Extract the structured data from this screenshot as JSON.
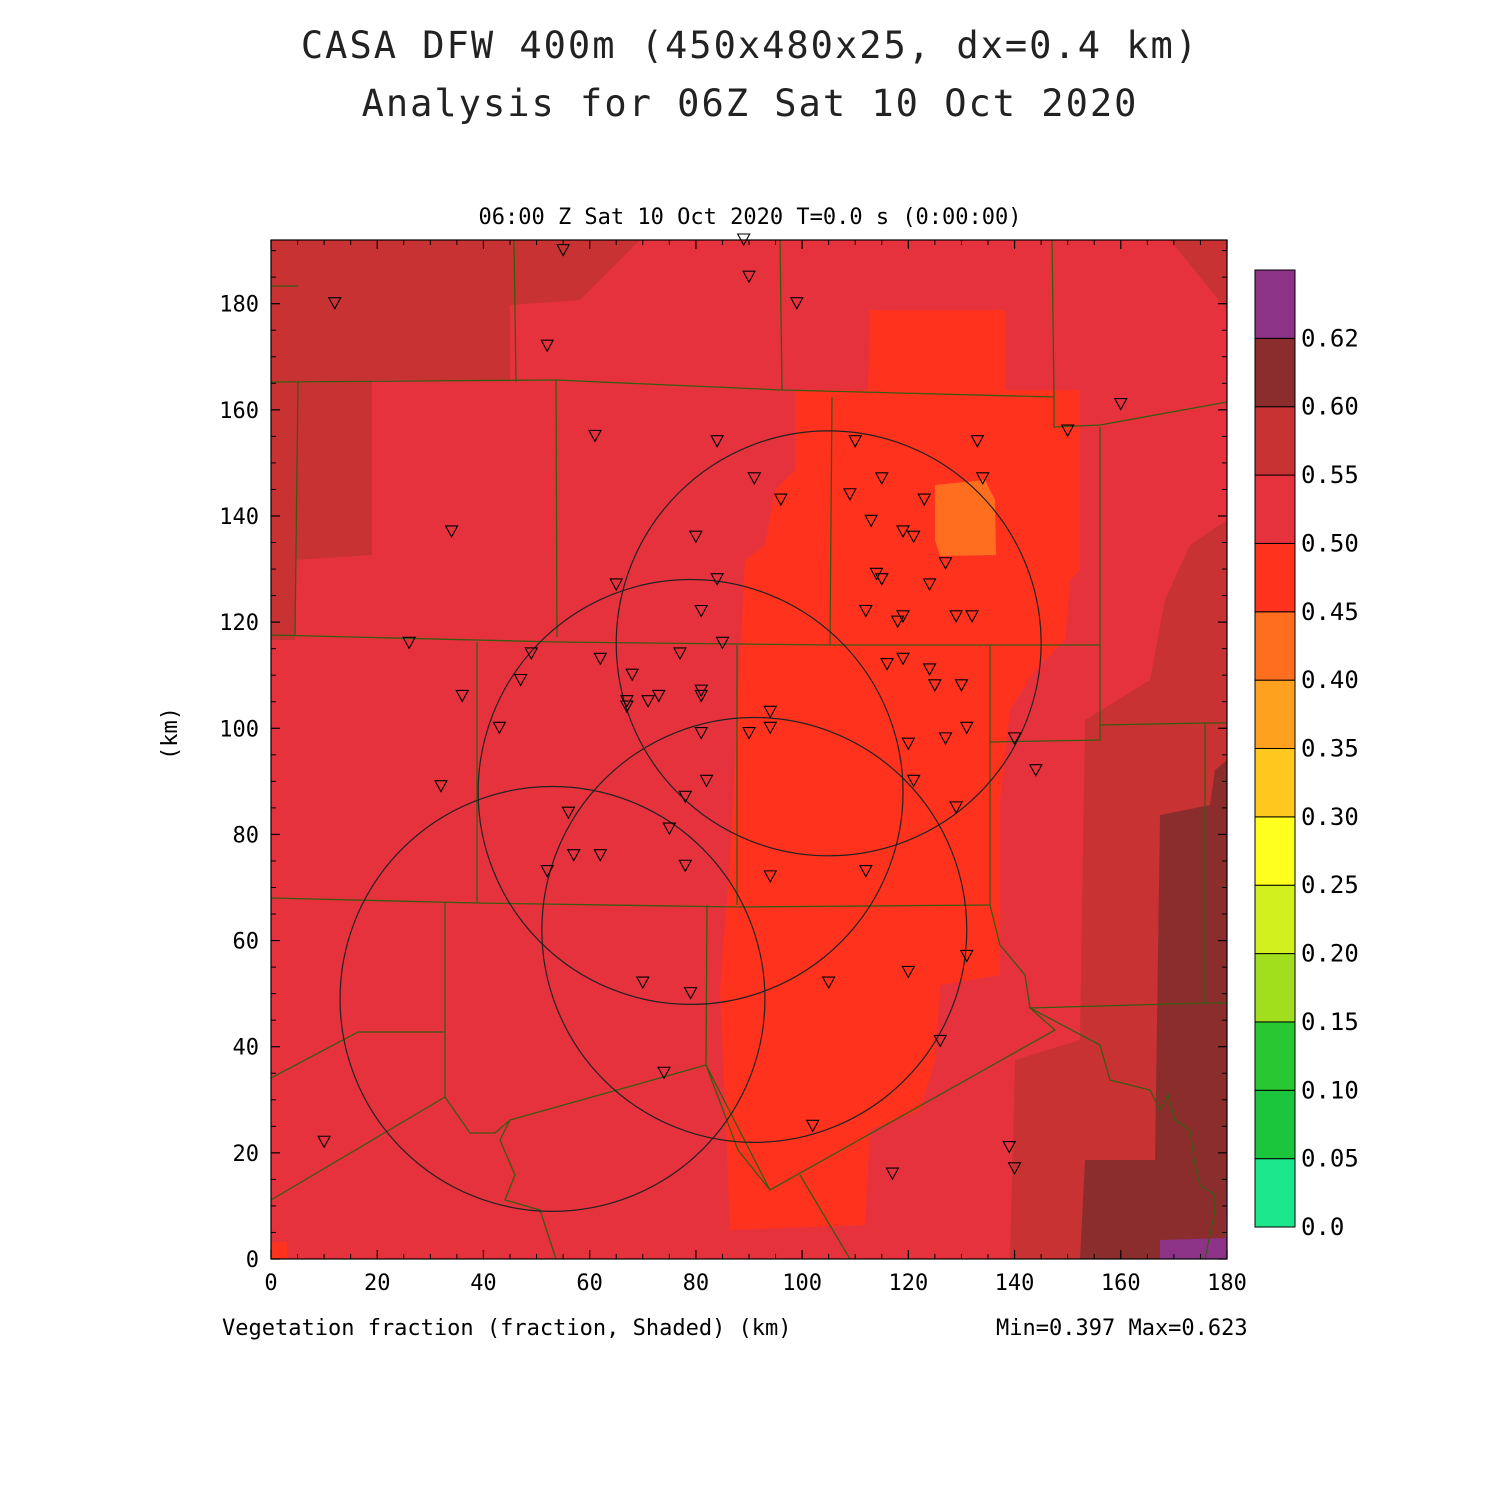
{
  "title": {
    "line1": "CASA DFW 400m (450x480x25, dx=0.4 km)",
    "line2": "Analysis for 06Z Sat 10 Oct 2020"
  },
  "time_label": "06:00 Z Sat 10 Oct 2020    T=0.0 s (0:00:00)",
  "y_axis_label": "(km)",
  "x_axis": {
    "min": 0,
    "max": 180,
    "ticks": [
      "0",
      "20",
      "40",
      "60",
      "80",
      "100",
      "120",
      "140",
      "160",
      "180"
    ]
  },
  "y_axis": {
    "min": 0,
    "max": 192,
    "ticks": [
      "0",
      "20",
      "40",
      "60",
      "80",
      "100",
      "120",
      "140",
      "160",
      "180"
    ]
  },
  "footer_left": "Vegetation fraction (fraction, Shaded)  (km)",
  "footer_right": "Min=0.397 Max=0.623",
  "colorbar": {
    "labels": [
      "0.0",
      "0.05",
      "0.10",
      "0.15",
      "0.20",
      "0.25",
      "0.30",
      "0.35",
      "0.40",
      "0.45",
      "0.50",
      "0.55",
      "0.60",
      "0.62"
    ],
    "colors": [
      "#1be68c",
      "#1cc63c",
      "#28c832",
      "#a0de1e",
      "#d2f01e",
      "#ffff1e",
      "#ffc81e",
      "#ffa01e",
      "#ff6e1e",
      "#ff321e",
      "#e6323c",
      "#c83232",
      "#8c2d2d",
      "#8c3287"
    ]
  },
  "radar_rings_km": [
    {
      "x": 53,
      "y": 49,
      "r": 40
    },
    {
      "x": 79,
      "y": 88,
      "r": 40
    },
    {
      "x": 91,
      "y": 62,
      "r": 40
    },
    {
      "x": 105,
      "y": 116,
      "r": 40
    }
  ],
  "stations_km": [
    [
      12,
      180
    ],
    [
      55,
      190
    ],
    [
      89,
      192
    ],
    [
      90,
      185
    ],
    [
      99,
      180
    ],
    [
      52,
      172
    ],
    [
      61,
      155
    ],
    [
      84,
      154
    ],
    [
      91,
      147
    ],
    [
      96,
      143
    ],
    [
      34,
      137
    ],
    [
      80,
      136
    ],
    [
      65,
      127
    ],
    [
      84,
      128
    ],
    [
      81,
      122
    ],
    [
      26,
      116
    ],
    [
      85,
      116
    ],
    [
      36,
      106
    ],
    [
      43,
      100
    ],
    [
      49,
      114
    ],
    [
      47,
      109
    ],
    [
      62,
      113
    ],
    [
      68,
      110
    ],
    [
      67,
      105
    ],
    [
      67,
      104
    ],
    [
      71,
      105
    ],
    [
      73,
      106
    ],
    [
      77,
      114
    ],
    [
      81,
      106
    ],
    [
      81,
      107
    ],
    [
      81,
      99
    ],
    [
      82,
      90
    ],
    [
      78,
      87
    ],
    [
      75,
      81
    ],
    [
      56,
      84
    ],
    [
      57,
      76
    ],
    [
      62,
      76
    ],
    [
      52,
      73
    ],
    [
      78,
      74
    ],
    [
      94,
      72
    ],
    [
      90,
      99
    ],
    [
      94,
      103
    ],
    [
      94,
      100
    ],
    [
      32,
      89
    ],
    [
      110,
      154
    ],
    [
      115,
      147
    ],
    [
      109,
      144
    ],
    [
      113,
      139
    ],
    [
      123,
      143
    ],
    [
      119,
      137
    ],
    [
      121,
      136
    ],
    [
      127,
      131
    ],
    [
      114,
      129
    ],
    [
      115,
      128
    ],
    [
      124,
      127
    ],
    [
      112,
      122
    ],
    [
      119,
      121
    ],
    [
      118,
      120
    ],
    [
      129,
      121
    ],
    [
      132,
      121
    ],
    [
      133,
      154
    ],
    [
      134,
      147
    ],
    [
      116,
      112
    ],
    [
      119,
      113
    ],
    [
      124,
      111
    ],
    [
      125,
      108
    ],
    [
      130,
      108
    ],
    [
      131,
      100
    ],
    [
      127,
      98
    ],
    [
      120,
      97
    ],
    [
      121,
      90
    ],
    [
      129,
      85
    ],
    [
      112,
      73
    ],
    [
      140,
      98
    ],
    [
      144,
      92
    ],
    [
      131,
      57
    ],
    [
      120,
      54
    ],
    [
      105,
      52
    ],
    [
      70,
      52
    ],
    [
      79,
      50
    ],
    [
      126,
      41
    ],
    [
      74,
      35
    ],
    [
      102,
      25
    ],
    [
      117,
      16
    ],
    [
      139,
      21
    ],
    [
      140,
      17
    ],
    [
      10,
      22
    ],
    [
      150,
      156
    ],
    [
      160,
      161
    ]
  ]
}
